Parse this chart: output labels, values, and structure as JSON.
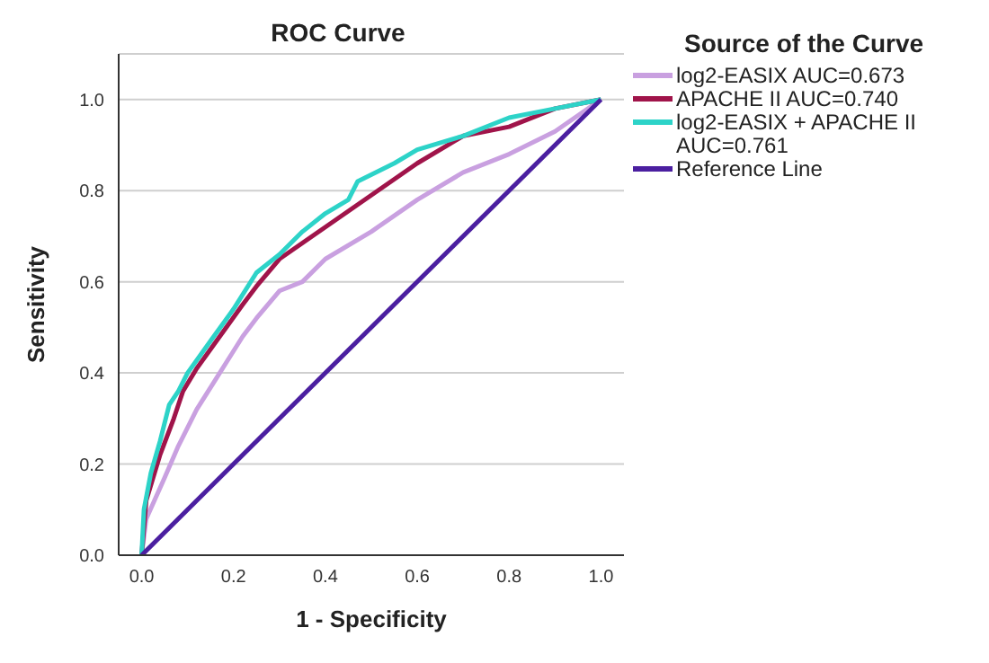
{
  "chart_data": {
    "type": "line",
    "title": "ROC Curve",
    "xlabel": "1 - Specificity",
    "ylabel": "Sensitivity",
    "legend_title": "Source of the Curve",
    "legend": "top right",
    "grid": "y",
    "marker": "none",
    "line_style": "solid",
    "xlim": [
      -0.05,
      1.05
    ],
    "ylim": [
      0,
      1.1
    ],
    "xticks": [
      {
        "value": 0,
        "label": "0.0"
      },
      {
        "value": 0.2,
        "label": "0.2"
      },
      {
        "value": 0.4,
        "label": "0.4"
      },
      {
        "value": 0.6,
        "label": "0.6"
      },
      {
        "value": 0.8,
        "label": "0.8"
      },
      {
        "value": 1,
        "label": "1.0"
      }
    ],
    "yticks": [
      {
        "value": 0,
        "label": "0.0"
      },
      {
        "value": 0.2,
        "label": "0.2"
      },
      {
        "value": 0.4,
        "label": "0.4"
      },
      {
        "value": 0.6,
        "label": "0.6"
      },
      {
        "value": 0.8,
        "label": "0.8"
      },
      {
        "value": 1,
        "label": "1.0"
      }
    ],
    "series": [
      {
        "name": "log2-EASIX AUC=0.673",
        "color": "#c9a0e0",
        "x": [
          0,
          0.01,
          0.05,
          0.08,
          0.12,
          0.17,
          0.22,
          0.25,
          0.3,
          0.35,
          0.4,
          0.5,
          0.6,
          0.7,
          0.8,
          0.9,
          1
        ],
        "values": [
          0,
          0.08,
          0.17,
          0.24,
          0.32,
          0.4,
          0.48,
          0.52,
          0.58,
          0.6,
          0.65,
          0.71,
          0.78,
          0.84,
          0.88,
          0.93,
          1
        ]
      },
      {
        "name": "APACHE II AUC=0.740",
        "color": "#a0144a",
        "x": [
          0,
          0.01,
          0.04,
          0.07,
          0.09,
          0.12,
          0.17,
          0.22,
          0.25,
          0.3,
          0.4,
          0.5,
          0.6,
          0.7,
          0.8,
          0.9,
          1
        ],
        "values": [
          0,
          0.12,
          0.22,
          0.3,
          0.36,
          0.41,
          0.48,
          0.55,
          0.59,
          0.65,
          0.72,
          0.79,
          0.86,
          0.92,
          0.94,
          0.98,
          1
        ]
      },
      {
        "name": "log2-EASIX + APACHE II AUC=0.761",
        "color": "#2dd3c8",
        "x": [
          0,
          0.005,
          0.02,
          0.04,
          0.06,
          0.08,
          0.1,
          0.15,
          0.2,
          0.25,
          0.3,
          0.35,
          0.4,
          0.45,
          0.47,
          0.55,
          0.6,
          0.7,
          0.8,
          0.9,
          1
        ],
        "values": [
          0,
          0.1,
          0.18,
          0.25,
          0.33,
          0.36,
          0.4,
          0.47,
          0.54,
          0.62,
          0.66,
          0.71,
          0.75,
          0.78,
          0.82,
          0.86,
          0.89,
          0.92,
          0.96,
          0.98,
          1
        ]
      },
      {
        "name": "Reference Line",
        "color": "#4b1fa0",
        "x": [
          0,
          1
        ],
        "values": [
          0,
          1
        ]
      }
    ]
  }
}
